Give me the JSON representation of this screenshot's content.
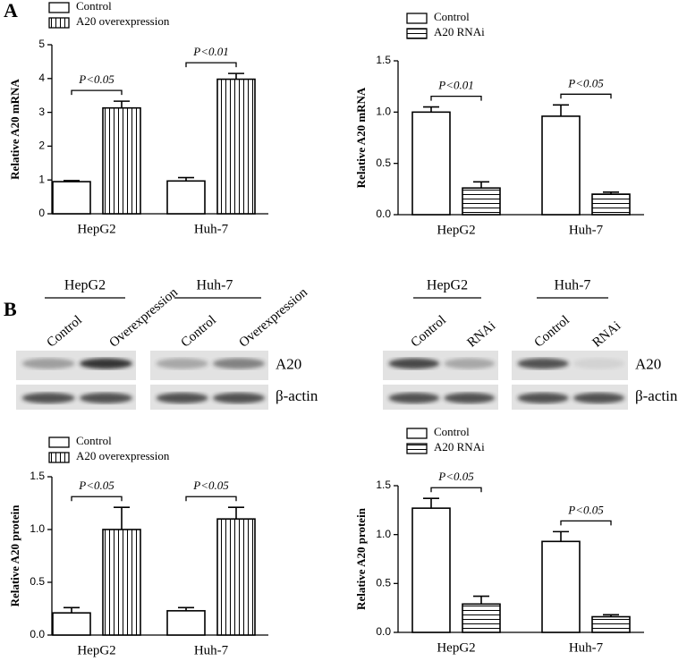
{
  "panels": [
    "A",
    "B"
  ],
  "blots": [
    {
      "groups": [
        {
          "name": "HepG2",
          "lanes": [
            "Control",
            "Overexpression"
          ]
        },
        {
          "name": "Huh-7",
          "lanes": [
            "Control",
            "Overexpression"
          ]
        }
      ],
      "rows": [
        "A20",
        "β-actin"
      ]
    },
    {
      "groups": [
        {
          "name": "HepG2",
          "lanes": [
            "Control",
            "RNAi"
          ]
        },
        {
          "name": "Huh-7",
          "lanes": [
            "Control",
            "RNAi"
          ]
        }
      ],
      "rows": [
        "A20",
        "β-actin"
      ]
    }
  ],
  "chart_data": [
    {
      "type": "bar",
      "ylabel": "Relative A20 mRNA",
      "categories": [
        "HepG2",
        "Huh-7"
      ],
      "series": [
        {
          "name": "Control",
          "color": "#ffffff",
          "pattern": "none",
          "values": [
            0.95,
            0.97
          ],
          "errors": [
            0.03,
            0.1
          ]
        },
        {
          "name": "A20 overexpression",
          "color": "#ffffff",
          "pattern": "vertical",
          "values": [
            3.13,
            3.98
          ],
          "errors": [
            0.2,
            0.17
          ]
        }
      ],
      "annotations": [
        "P<0.05",
        "P<0.01"
      ],
      "ylim": [
        0,
        5
      ],
      "yticks": [
        0,
        1,
        2,
        3,
        4,
        5
      ],
      "grid": false
    },
    {
      "type": "bar",
      "ylabel": "Relative A20 mRNA",
      "categories": [
        "HepG2",
        "Huh-7"
      ],
      "series": [
        {
          "name": "Control",
          "color": "#ffffff",
          "pattern": "none",
          "values": [
            1.0,
            0.96
          ],
          "errors": [
            0.05,
            0.11
          ]
        },
        {
          "name": "A20 RNAi",
          "color": "#ffffff",
          "pattern": "horizontal",
          "values": [
            0.26,
            0.2
          ],
          "errors": [
            0.06,
            0.02
          ]
        }
      ],
      "annotations": [
        "P<0.01",
        "P<0.05"
      ],
      "ylim": [
        0,
        1.5
      ],
      "yticks": [
        {
          "value": 0,
          "label": "0.0"
        },
        0.5,
        {
          "value": 1,
          "label": "1.0"
        },
        1.5
      ],
      "grid": false
    },
    {
      "type": "bar",
      "ylabel": "Relative A20 protein",
      "categories": [
        "HepG2",
        "Huh-7"
      ],
      "series": [
        {
          "name": "Control",
          "color": "#ffffff",
          "pattern": "none",
          "values": [
            0.21,
            0.23
          ],
          "errors": [
            0.05,
            0.03
          ]
        },
        {
          "name": "A20 overexpression",
          "color": "#ffffff",
          "pattern": "vertical",
          "values": [
            1.0,
            1.1
          ],
          "errors": [
            0.21,
            0.11
          ]
        }
      ],
      "annotations": [
        "P<0.05",
        "P<0.05"
      ],
      "ylim": [
        0,
        1.5
      ],
      "yticks": [
        {
          "value": 0,
          "label": "0.0"
        },
        0.5,
        {
          "value": 1,
          "label": "1.0"
        },
        1.5
      ],
      "grid": false
    },
    {
      "type": "bar",
      "ylabel": "Relative A20 protein",
      "categories": [
        "HepG2",
        "Huh-7"
      ],
      "series": [
        {
          "name": "Control",
          "color": "#ffffff",
          "pattern": "none",
          "values": [
            1.27,
            0.93
          ],
          "errors": [
            0.1,
            0.1
          ]
        },
        {
          "name": "A20 RNAi",
          "color": "#ffffff",
          "pattern": "horizontal",
          "values": [
            0.29,
            0.16
          ],
          "errors": [
            0.08,
            0.02
          ]
        }
      ],
      "annotations": [
        "P<0.05",
        "P<0.05"
      ],
      "ylim": [
        0,
        1.5
      ],
      "yticks": [
        {
          "value": 0,
          "label": "0.0"
        },
        0.5,
        {
          "value": 1,
          "label": "1.0"
        },
        1.5
      ],
      "grid": false
    }
  ]
}
